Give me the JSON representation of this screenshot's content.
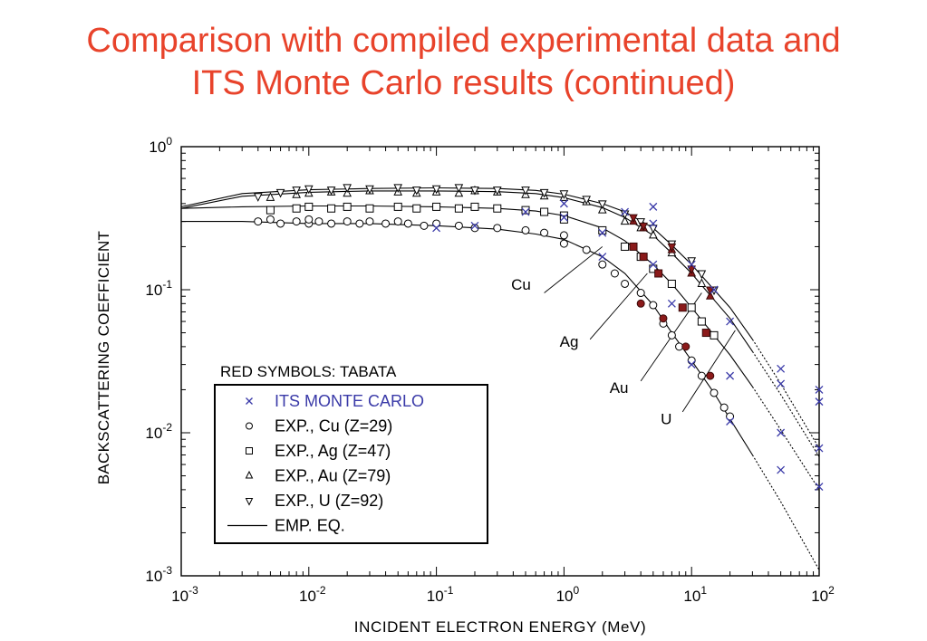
{
  "slide": {
    "title_line1": "Comparison with compiled experimental data and",
    "title_line2": "ITS Monte Carlo results (continued)"
  },
  "colors": {
    "title": "#e8432b",
    "its_marker": "#3a3aa8",
    "tabata_fill": "#8b1a1a",
    "ink": "#000000"
  },
  "chart_data": {
    "type": "scatter",
    "x_scale": "log",
    "y_scale": "log",
    "xlim": [
      0.001,
      100
    ],
    "ylim": [
      0.001,
      1
    ],
    "xlabel": "INCIDENT ELECTRON ENERGY (MeV)",
    "ylabel": "BACKSCATTERING COEFFICIENT",
    "x_ticks": [
      {
        "base": "10",
        "exp": "-3",
        "value": 0.001
      },
      {
        "base": "10",
        "exp": "-2",
        "value": 0.01
      },
      {
        "base": "10",
        "exp": "-1",
        "value": 0.1
      },
      {
        "base": "10",
        "exp": "0",
        "value": 1
      },
      {
        "base": "10",
        "exp": "1",
        "value": 10
      },
      {
        "base": "10",
        "exp": "2",
        "value": 100
      }
    ],
    "y_ticks": [
      {
        "base": "10",
        "exp": "-3",
        "value": 0.001
      },
      {
        "base": "10",
        "exp": "-2",
        "value": 0.01
      },
      {
        "base": "10",
        "exp": "-1",
        "value": 0.1
      },
      {
        "base": "10",
        "exp": "0",
        "value": 1
      }
    ],
    "note": "RED SYMBOLS: TABATA",
    "legend": [
      {
        "marker": "x",
        "label": "ITS MONTE CARLO"
      },
      {
        "marker": "circle",
        "label": "EXP., Cu (Z=29)"
      },
      {
        "marker": "square",
        "label": "EXP., Ag (Z=47)"
      },
      {
        "marker": "triangle-up",
        "label": "EXP., Au (Z=79)"
      },
      {
        "marker": "triangle-down",
        "label": "EXP., U  (Z=92)"
      },
      {
        "marker": "line",
        "label": "EMP. EQ."
      }
    ],
    "curves": [
      {
        "name": "Cu",
        "label_at": [
          0.55,
          0.1
        ],
        "points": [
          [
            0.001,
            0.3
          ],
          [
            0.003,
            0.3
          ],
          [
            0.01,
            0.29
          ],
          [
            0.03,
            0.29
          ],
          [
            0.1,
            0.28
          ],
          [
            0.3,
            0.265
          ],
          [
            0.6,
            0.245
          ],
          [
            1,
            0.225
          ],
          [
            2,
            0.17
          ],
          [
            3,
            0.13
          ],
          [
            5,
            0.078
          ],
          [
            7,
            0.05
          ],
          [
            10,
            0.032
          ],
          [
            15,
            0.019
          ],
          [
            20,
            0.0125
          ],
          [
            30,
            0.007
          ],
          [
            50,
            0.0033
          ],
          [
            100,
            0.0011
          ]
        ]
      },
      {
        "name": "Ag",
        "label_at": [
          1.3,
          0.04
        ],
        "points": [
          [
            0.001,
            0.37
          ],
          [
            0.003,
            0.38
          ],
          [
            0.01,
            0.385
          ],
          [
            0.03,
            0.385
          ],
          [
            0.1,
            0.38
          ],
          [
            0.3,
            0.37
          ],
          [
            0.6,
            0.355
          ],
          [
            1,
            0.33
          ],
          [
            2,
            0.27
          ],
          [
            3,
            0.22
          ],
          [
            5,
            0.15
          ],
          [
            7,
            0.11
          ],
          [
            10,
            0.075
          ],
          [
            15,
            0.048
          ],
          [
            20,
            0.035
          ],
          [
            30,
            0.021
          ],
          [
            50,
            0.0105
          ],
          [
            100,
            0.004
          ]
        ]
      },
      {
        "name": "Au",
        "label_at": [
          3.2,
          0.019
        ],
        "points": [
          [
            0.001,
            0.37
          ],
          [
            0.003,
            0.45
          ],
          [
            0.01,
            0.48
          ],
          [
            0.03,
            0.49
          ],
          [
            0.1,
            0.49
          ],
          [
            0.3,
            0.485
          ],
          [
            0.6,
            0.47
          ],
          [
            1,
            0.44
          ],
          [
            2,
            0.375
          ],
          [
            3,
            0.32
          ],
          [
            5,
            0.24
          ],
          [
            7,
            0.18
          ],
          [
            10,
            0.13
          ],
          [
            15,
            0.085
          ],
          [
            20,
            0.063
          ],
          [
            30,
            0.037
          ],
          [
            50,
            0.0185
          ],
          [
            100,
            0.0068
          ]
        ]
      },
      {
        "name": "U",
        "label_at": [
          7.0,
          0.0115
        ],
        "points": [
          [
            0.001,
            0.38
          ],
          [
            0.003,
            0.47
          ],
          [
            0.01,
            0.5
          ],
          [
            0.03,
            0.51
          ],
          [
            0.1,
            0.515
          ],
          [
            0.3,
            0.51
          ],
          [
            0.6,
            0.495
          ],
          [
            1,
            0.465
          ],
          [
            2,
            0.4
          ],
          [
            3,
            0.35
          ],
          [
            5,
            0.27
          ],
          [
            7,
            0.205
          ],
          [
            10,
            0.15
          ],
          [
            15,
            0.1
          ],
          [
            20,
            0.075
          ],
          [
            30,
            0.045
          ],
          [
            50,
            0.022
          ],
          [
            100,
            0.0078
          ]
        ]
      }
    ],
    "pointer_lines": [
      {
        "from": [
          0.7,
          0.095
        ],
        "to": [
          2.0,
          0.2
        ]
      },
      {
        "from": [
          1.6,
          0.045
        ],
        "to": [
          4.5,
          0.13
        ]
      },
      {
        "from": [
          4.0,
          0.023
        ],
        "to": [
          12.0,
          0.095
        ]
      },
      {
        "from": [
          8.5,
          0.014
        ],
        "to": [
          22.0,
          0.052
        ]
      }
    ],
    "its_monte_carlo": [
      [
        0.1,
        0.27
      ],
      [
        0.2,
        0.28
      ],
      [
        0.5,
        0.35
      ],
      [
        1,
        0.32
      ],
      [
        1,
        0.4
      ],
      [
        2,
        0.25
      ],
      [
        2,
        0.17
      ],
      [
        3,
        0.35
      ],
      [
        5,
        0.38
      ],
      [
        5,
        0.29
      ],
      [
        5,
        0.15
      ],
      [
        7,
        0.08
      ],
      [
        10,
        0.15
      ],
      [
        10,
        0.03
      ],
      [
        15,
        0.1
      ],
      [
        20,
        0.06
      ],
      [
        20,
        0.025
      ],
      [
        20,
        0.012
      ],
      [
        50,
        0.028
      ],
      [
        50,
        0.022
      ],
      [
        50,
        0.01
      ],
      [
        50,
        0.0055
      ],
      [
        100,
        0.02
      ],
      [
        100,
        0.0165
      ],
      [
        100,
        0.0078
      ],
      [
        100,
        0.0042
      ]
    ],
    "exp_cu": [
      [
        0.004,
        0.3
      ],
      [
        0.005,
        0.31
      ],
      [
        0.006,
        0.29
      ],
      [
        0.008,
        0.3
      ],
      [
        0.01,
        0.29
      ],
      [
        0.01,
        0.31
      ],
      [
        0.012,
        0.3
      ],
      [
        0.015,
        0.29
      ],
      [
        0.02,
        0.3
      ],
      [
        0.025,
        0.29
      ],
      [
        0.03,
        0.3
      ],
      [
        0.04,
        0.29
      ],
      [
        0.05,
        0.3
      ],
      [
        0.06,
        0.29
      ],
      [
        0.08,
        0.28
      ],
      [
        0.1,
        0.29
      ],
      [
        0.15,
        0.28
      ],
      [
        0.2,
        0.27
      ],
      [
        0.3,
        0.27
      ],
      [
        0.5,
        0.26
      ],
      [
        0.7,
        0.25
      ],
      [
        1,
        0.24
      ],
      [
        1,
        0.21
      ],
      [
        1.5,
        0.19
      ],
      [
        2,
        0.15
      ],
      [
        2.5,
        0.13
      ],
      [
        3,
        0.11
      ],
      [
        4,
        0.095
      ],
      [
        5,
        0.078
      ],
      [
        6,
        0.058
      ],
      [
        7,
        0.048
      ],
      [
        8,
        0.04
      ],
      [
        10,
        0.032
      ],
      [
        12,
        0.025
      ],
      [
        15,
        0.019
      ],
      [
        18,
        0.015
      ],
      [
        20,
        0.013
      ]
    ],
    "exp_ag": [
      [
        0.005,
        0.36
      ],
      [
        0.008,
        0.37
      ],
      [
        0.01,
        0.38
      ],
      [
        0.015,
        0.37
      ],
      [
        0.02,
        0.38
      ],
      [
        0.03,
        0.37
      ],
      [
        0.05,
        0.38
      ],
      [
        0.07,
        0.37
      ],
      [
        0.1,
        0.38
      ],
      [
        0.15,
        0.37
      ],
      [
        0.2,
        0.38
      ],
      [
        0.3,
        0.37
      ],
      [
        0.5,
        0.36
      ],
      [
        0.7,
        0.35
      ],
      [
        1,
        0.33
      ],
      [
        1,
        0.31
      ],
      [
        2,
        0.26
      ],
      [
        3,
        0.2
      ],
      [
        4,
        0.17
      ],
      [
        5,
        0.14
      ],
      [
        7,
        0.11
      ],
      [
        10,
        0.075
      ],
      [
        12,
        0.06
      ],
      [
        15,
        0.048
      ]
    ],
    "exp_au": [
      [
        0.005,
        0.44
      ],
      [
        0.008,
        0.46
      ],
      [
        0.01,
        0.47
      ],
      [
        0.015,
        0.48
      ],
      [
        0.02,
        0.47
      ],
      [
        0.03,
        0.49
      ],
      [
        0.05,
        0.48
      ],
      [
        0.07,
        0.47
      ],
      [
        0.1,
        0.48
      ],
      [
        0.15,
        0.47
      ],
      [
        0.2,
        0.49
      ],
      [
        0.3,
        0.48
      ],
      [
        0.5,
        0.46
      ],
      [
        0.7,
        0.45
      ],
      [
        1,
        0.44
      ],
      [
        1.5,
        0.41
      ],
      [
        2,
        0.36
      ],
      [
        3,
        0.3
      ],
      [
        4,
        0.27
      ],
      [
        5,
        0.24
      ],
      [
        7,
        0.18
      ],
      [
        10,
        0.13
      ],
      [
        12,
        0.11
      ]
    ],
    "exp_u": [
      [
        0.004,
        0.45
      ],
      [
        0.006,
        0.48
      ],
      [
        0.008,
        0.5
      ],
      [
        0.01,
        0.51
      ],
      [
        0.015,
        0.5
      ],
      [
        0.02,
        0.52
      ],
      [
        0.03,
        0.51
      ],
      [
        0.05,
        0.52
      ],
      [
        0.07,
        0.5
      ],
      [
        0.1,
        0.51
      ],
      [
        0.15,
        0.52
      ],
      [
        0.2,
        0.5
      ],
      [
        0.3,
        0.5
      ],
      [
        0.5,
        0.5
      ],
      [
        0.7,
        0.48
      ],
      [
        1,
        0.47
      ],
      [
        1.5,
        0.43
      ],
      [
        2,
        0.4
      ],
      [
        3,
        0.34
      ],
      [
        4,
        0.3
      ],
      [
        5,
        0.27
      ],
      [
        7,
        0.21
      ],
      [
        10,
        0.16
      ],
      [
        12,
        0.13
      ],
      [
        15,
        0.1
      ]
    ],
    "tabata": [
      {
        "marker": "circle",
        "points": [
          [
            4,
            0.08
          ],
          [
            6,
            0.063
          ],
          [
            9,
            0.04
          ],
          [
            14,
            0.025
          ]
        ]
      },
      {
        "marker": "square",
        "points": [
          [
            3.5,
            0.2
          ],
          [
            4.2,
            0.17
          ],
          [
            5.5,
            0.13
          ],
          [
            8.5,
            0.075
          ],
          [
            13,
            0.05
          ]
        ]
      },
      {
        "marker": "triangle-up",
        "points": [
          [
            3.5,
            0.3
          ],
          [
            4.2,
            0.27
          ],
          [
            7,
            0.19
          ],
          [
            10,
            0.13
          ],
          [
            14,
            0.09
          ]
        ]
      },
      {
        "marker": "triangle-down",
        "points": [
          [
            3.5,
            0.32
          ],
          [
            4.2,
            0.28
          ],
          [
            7,
            0.2
          ],
          [
            10,
            0.14
          ],
          [
            14,
            0.1
          ]
        ]
      }
    ]
  }
}
